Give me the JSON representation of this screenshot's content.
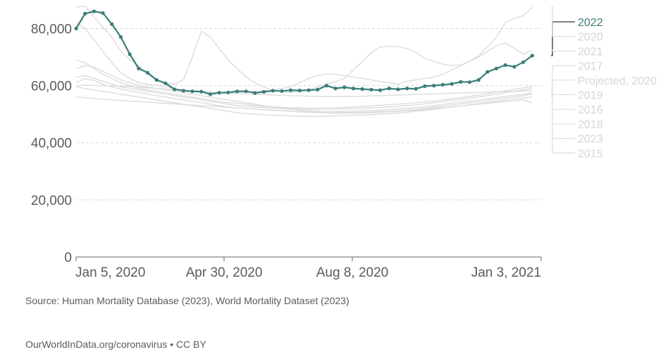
{
  "chart_data": {
    "type": "line",
    "x_ticks": [
      "Jan 5, 2020",
      "Apr 30, 2020",
      "Aug 8, 2020",
      "Jan 3, 2021"
    ],
    "y_ticks": [
      "0",
      "20,000",
      "40,000",
      "60,000",
      "80,000"
    ],
    "ylim": [
      0,
      88000
    ],
    "week_range": [
      1,
      53
    ],
    "grid": "horizontal dashed",
    "legend_placement": "right",
    "highlight_series": "2022",
    "colors": {
      "highlight": "#3a7d78",
      "background_series": "#dcdcdc",
      "legend_muted": "#d6d6d6",
      "grid": "#d9d9d9",
      "axis": "#666666"
    },
    "series": [
      {
        "name": "2022",
        "highlighted": true,
        "markers": true,
        "values": [
          80000,
          85200,
          86000,
          85400,
          81500,
          77000,
          71000,
          66000,
          64500,
          62000,
          60800,
          58700,
          58200,
          58000,
          57900,
          57000,
          57500,
          57600,
          58000,
          58000,
          57400,
          57800,
          58200,
          58100,
          58400,
          58300,
          58400,
          58600,
          60000,
          59000,
          59400,
          59000,
          58800,
          58600,
          58400,
          59000,
          58700,
          59000,
          58900,
          59800,
          60000,
          60300,
          60600,
          61300,
          61200,
          62000,
          64800,
          66000,
          67200,
          66600,
          68200,
          70500
        ]
      },
      {
        "name": "2020",
        "values": [
          87500,
          87800,
          84000,
          80500,
          77000,
          72000,
          69000,
          67000,
          64000,
          62000,
          60800,
          60500,
          62000,
          70000,
          79000,
          77000,
          73000,
          69000,
          66000,
          63000,
          61000,
          59500,
          58500,
          57800,
          57600,
          58000,
          58500,
          59500,
          60500,
          61500,
          62500,
          65500,
          68500,
          71500,
          73500,
          73800,
          73600,
          73000,
          71500,
          69500,
          68500,
          67500,
          67000,
          67200,
          68500,
          70500,
          73500,
          77000,
          82000,
          83500,
          84500,
          87500
        ]
      },
      {
        "name": "2021",
        "values": [
          82000,
          80000,
          76000,
          72000,
          68000,
          64500,
          62500,
          61000,
          60500,
          60000,
          59500,
          59000,
          58500,
          58000,
          57700,
          57500,
          57300,
          57300,
          57500,
          57700,
          58000,
          58300,
          58500,
          59000,
          59500,
          61000,
          62500,
          63500,
          64000,
          64000,
          63500,
          63000,
          62500,
          62000,
          61500,
          61000,
          60500,
          61500,
          62000,
          62500,
          63000,
          64000,
          65500,
          67000,
          68500,
          70000,
          72000,
          74000,
          75000,
          73000,
          71000,
          72500
        ]
      },
      {
        "name": "2017",
        "values": [
          69000,
          68000,
          66000,
          64000,
          62500,
          61000,
          60000,
          59000,
          58500,
          58000,
          57500,
          57000,
          56500,
          56000,
          55500,
          55000,
          54500,
          54000,
          53800,
          53500,
          53000,
          52800,
          52600,
          52400,
          52300,
          52200,
          52100,
          52100,
          52200,
          52300,
          52400,
          52500,
          52700,
          52900,
          53100,
          53300,
          53500,
          53700,
          54000,
          54300,
          54600,
          55000,
          55400,
          55800,
          56200,
          56700,
          57200,
          57700,
          58200,
          58700,
          59200,
          59600
        ]
      },
      {
        "name": "Projected, 2020",
        "values": [
          60000,
          60100,
          60100,
          60000,
          59900,
          59800,
          59600,
          59400,
          59200,
          59000,
          58800,
          58600,
          58400,
          58200,
          58000,
          57800,
          57600,
          57400,
          57200,
          57000,
          56900,
          56800,
          56700,
          56600,
          56500,
          56400,
          56300,
          56200,
          56200,
          56200,
          56200,
          56200,
          56300,
          56400,
          56500,
          56600,
          56700,
          56800,
          56900,
          57000,
          57100,
          57200,
          57300,
          57400,
          57500,
          57600,
          57700,
          57800,
          57900,
          58000,
          58100,
          58200
        ]
      },
      {
        "name": "2019",
        "values": [
          63000,
          63500,
          62500,
          61500,
          60500,
          59500,
          59000,
          58500,
          58000,
          57500,
          57000,
          56500,
          56000,
          55500,
          55000,
          54500,
          54000,
          53500,
          53000,
          52800,
          52500,
          52300,
          52100,
          52000,
          51900,
          51800,
          51700,
          51700,
          51700,
          51800,
          51900,
          52000,
          52100,
          52200,
          52300,
          52500,
          52700,
          53000,
          53300,
          53600,
          54000,
          54400,
          54800,
          55200,
          55600,
          56000,
          56500,
          57000,
          57500,
          58000,
          58500,
          59000
        ]
      },
      {
        "name": "2016",
        "values": [
          61000,
          62500,
          61800,
          60500,
          59500,
          58800,
          58200,
          57600,
          57000,
          56500,
          56000,
          55500,
          55000,
          54500,
          54000,
          53500,
          53000,
          52500,
          52200,
          52000,
          51800,
          51600,
          51400,
          51200,
          51000,
          50900,
          50800,
          50800,
          50800,
          50900,
          51000,
          51100,
          51200,
          51300,
          51400,
          51600,
          51800,
          52000,
          52300,
          52600,
          53000,
          53400,
          53800,
          54200,
          54600,
          55000,
          55400,
          55800,
          56200,
          56600,
          57000,
          57500
        ]
      },
      {
        "name": "2018",
        "values": [
          66000,
          67000,
          66500,
          65000,
          63500,
          62000,
          61000,
          60000,
          59500,
          59000,
          58500,
          58000,
          57500,
          57000,
          56500,
          56000,
          55500,
          55000,
          54500,
          54000,
          53500,
          53000,
          52500,
          52000,
          51700,
          51400,
          51200,
          51000,
          50800,
          50700,
          50600,
          50600,
          50700,
          50800,
          50900,
          51000,
          51200,
          51400,
          51700,
          52000,
          52400,
          52800,
          53200,
          53600,
          54000,
          54400,
          54800,
          55200,
          55600,
          56000,
          56500,
          57000
        ]
      },
      {
        "name": "2023",
        "values": [
          59500,
          59000,
          58500,
          58000,
          57500,
          57000,
          56500,
          56000,
          55500,
          55000,
          54500,
          54000,
          53500,
          53000,
          52500,
          52000,
          51500,
          51000,
          50500,
          50200,
          50000,
          49800,
          49600,
          49500,
          49400,
          49300,
          49200,
          49200,
          49300,
          49400,
          49500,
          49600,
          49700,
          49800,
          50000,
          50200,
          50400,
          50700,
          51000,
          51300,
          51700,
          52100,
          52500,
          52900,
          53300,
          53700,
          54100,
          54500,
          54900,
          55300,
          55700,
          56000
        ]
      },
      {
        "name": "2015",
        "values": [
          56000,
          55800,
          55500,
          55200,
          55000,
          54800,
          54600,
          54400,
          54200,
          54000,
          53800,
          53600,
          53400,
          53200,
          53000,
          52800,
          52600,
          52400,
          52200,
          52000,
          51800,
          51600,
          51400,
          51200,
          51000,
          50800,
          50600,
          50500,
          50400,
          50300,
          50300,
          50300,
          50400,
          50500,
          50600,
          50800,
          51000,
          51200,
          51400,
          51700,
          52000,
          52300,
          52600,
          52900,
          53200,
          53500,
          53800,
          54100,
          54400,
          54700,
          55000,
          54000
        ]
      }
    ]
  },
  "footer": {
    "source": "Source: Human Mortality Database (2023), World Mortality Dataset (2023)",
    "credit": "OurWorldInData.org/coronavirus • CC BY"
  }
}
